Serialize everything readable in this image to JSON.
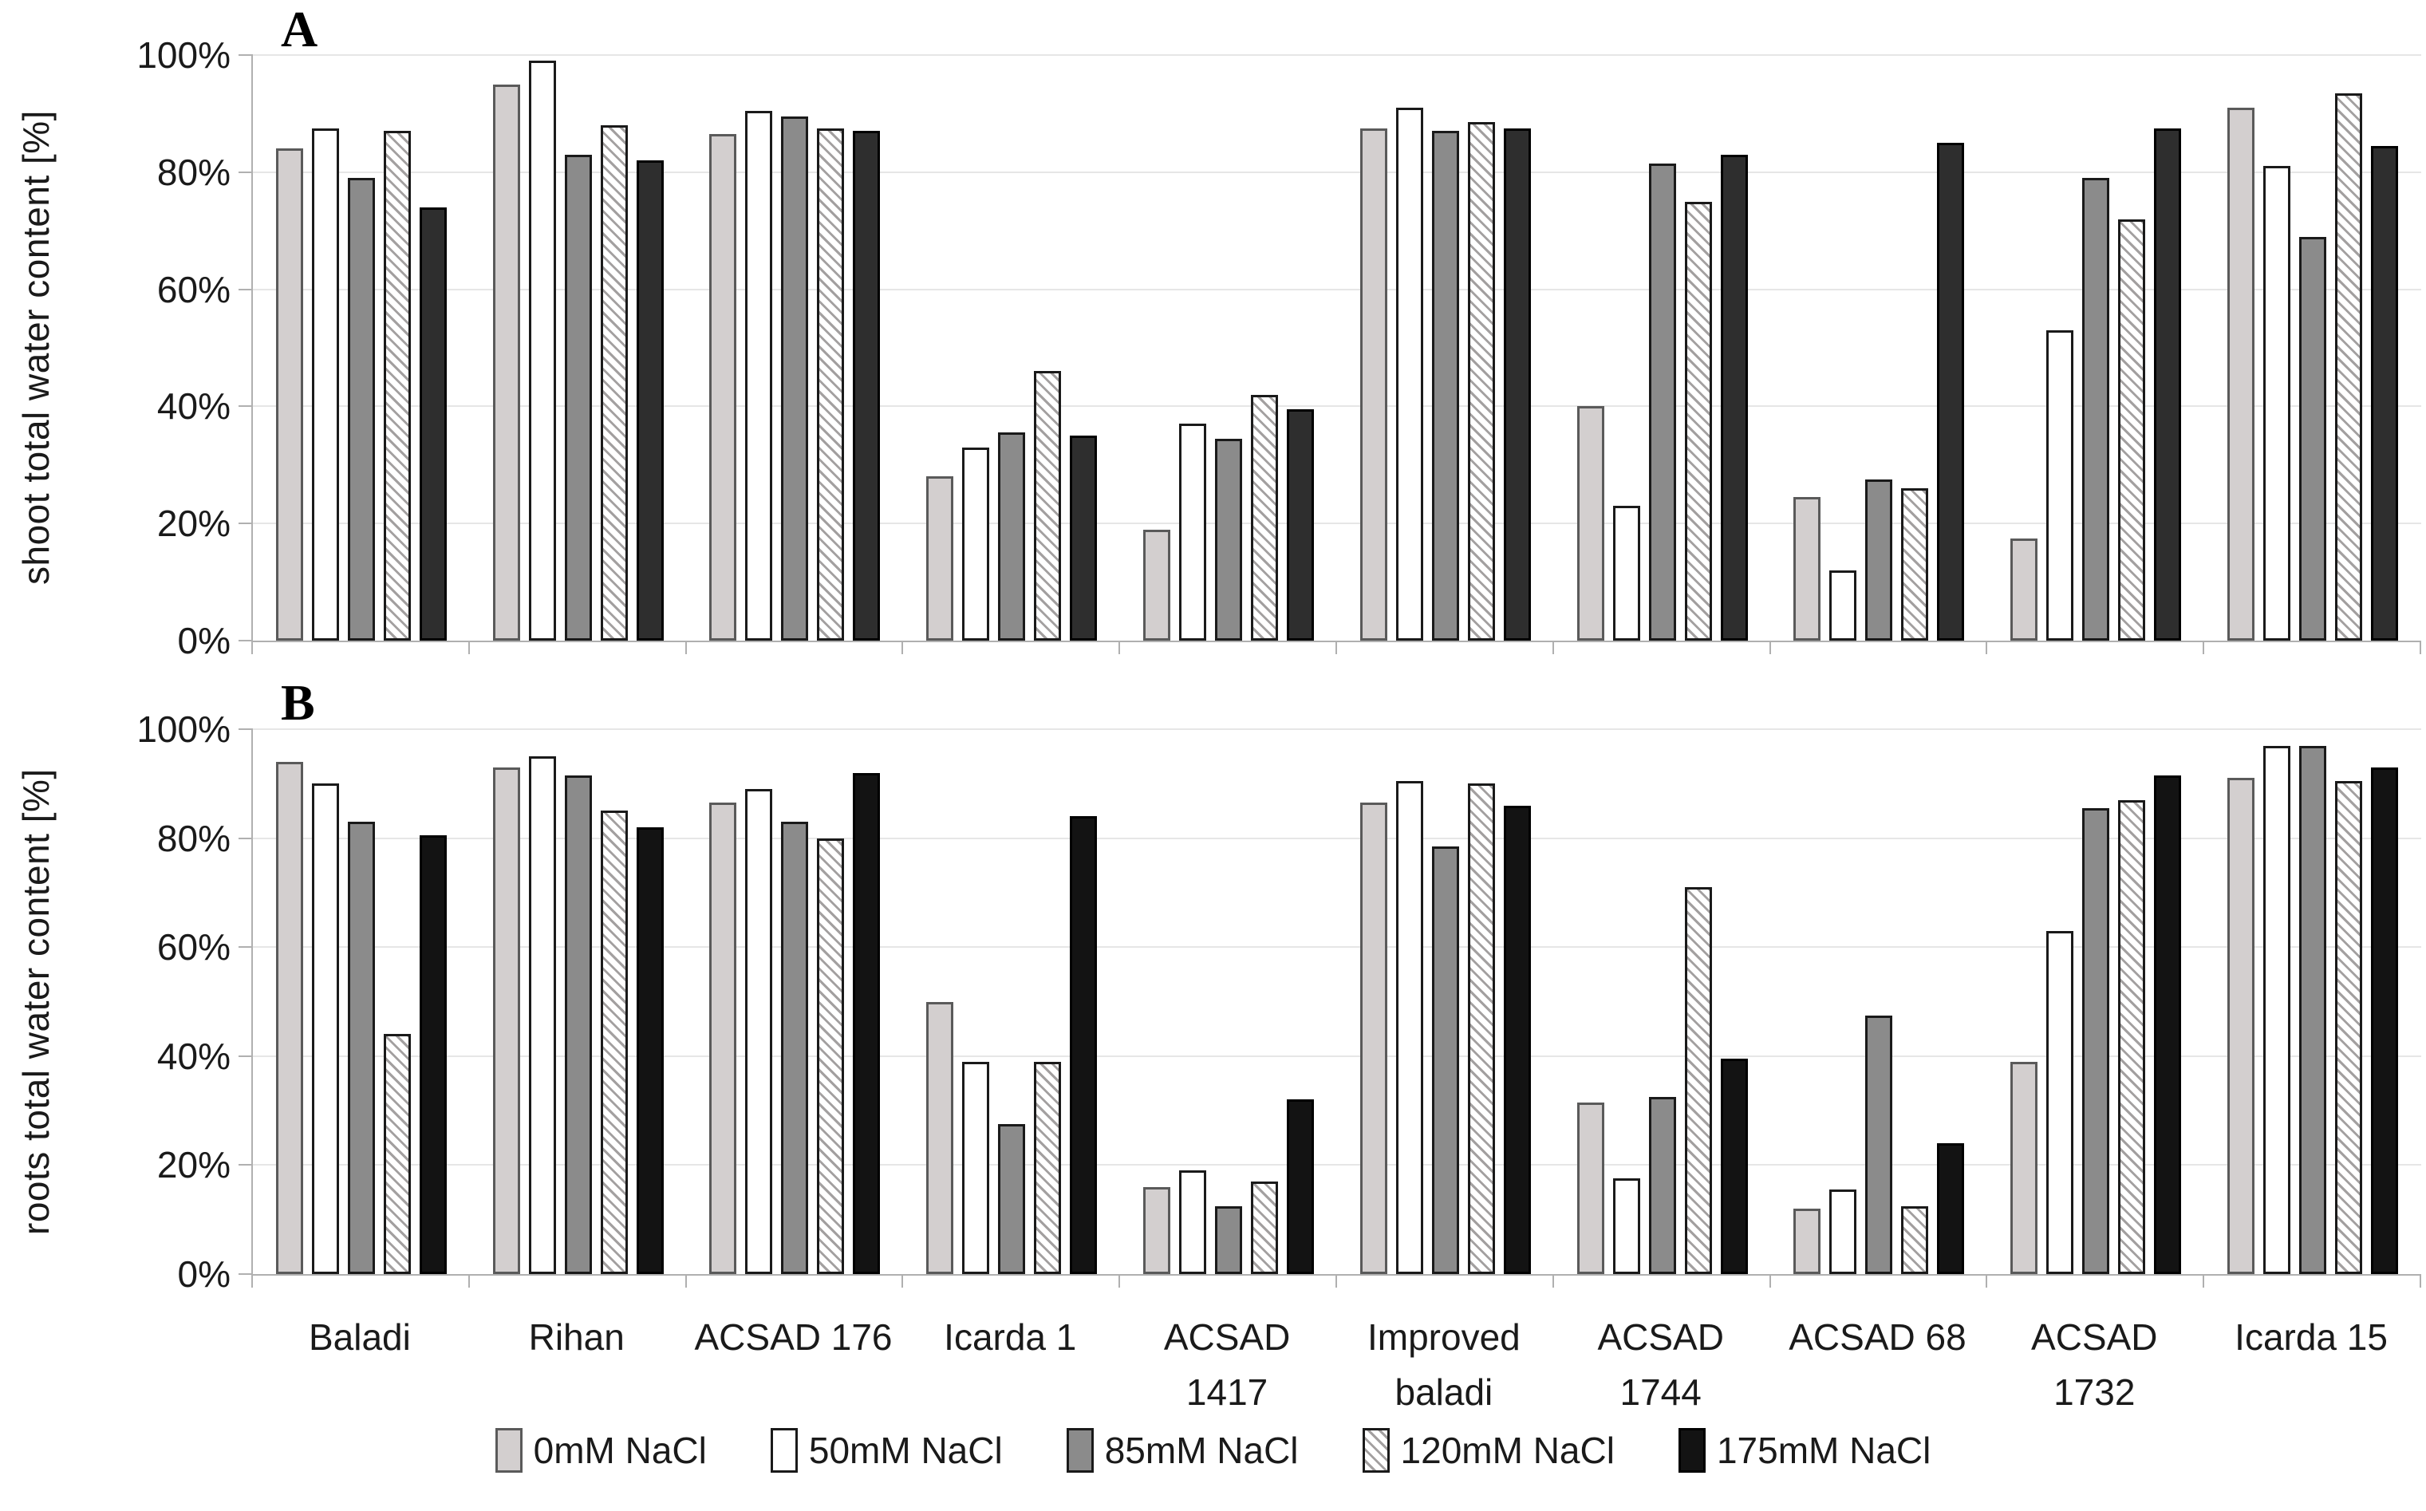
{
  "figure": {
    "panel_a_letter": "A",
    "panel_b_letter": "B"
  },
  "chart_data": [
    {
      "type": "bar",
      "panel": "A",
      "ylabel": "shoot  total water content [%]",
      "ylim": [
        0,
        100
      ],
      "grid": "horizontal",
      "yticks": [
        {
          "label": "0%",
          "value": 0
        },
        {
          "label": "20%",
          "value": 20
        },
        {
          "label": "40%",
          "value": 40
        },
        {
          "label": "60%",
          "value": 60
        },
        {
          "label": "80%",
          "value": 80
        },
        {
          "label": "100%",
          "value": 100
        }
      ],
      "categories": [
        "Baladi",
        "Rihan",
        "ACSAD 176",
        "Icarda 1",
        "ACSAD 1417",
        "Improved baladi",
        "ACSAD 1744",
        "ACSAD 68",
        "ACSAD 1732",
        "Icarda 15"
      ],
      "series": [
        {
          "name": "0mM NaCl",
          "values": [
            84,
            95,
            86.5,
            28,
            19,
            87.5,
            40,
            24.5,
            17.5,
            91
          ]
        },
        {
          "name": "50mM NaCl",
          "values": [
            87.5,
            99,
            90.5,
            33,
            37,
            91,
            23,
            12,
            53,
            81
          ]
        },
        {
          "name": "85mM NaCl",
          "values": [
            79,
            83,
            89.5,
            35.5,
            34.5,
            87,
            81.5,
            27.5,
            79,
            69
          ]
        },
        {
          "name": "120mM NaCl",
          "values": [
            87,
            88,
            87.5,
            46,
            42,
            88.5,
            75,
            26,
            72,
            93.5
          ]
        },
        {
          "name": "175mM NaCl",
          "values": [
            74,
            82,
            87,
            35,
            39.5,
            87.5,
            83,
            85,
            87.5,
            84.5
          ]
        }
      ]
    },
    {
      "type": "bar",
      "panel": "B",
      "ylabel": "roots total water content [%]",
      "ylim": [
        0,
        100
      ],
      "grid": "horizontal",
      "yticks": [
        {
          "label": "0%",
          "value": 0
        },
        {
          "label": "20%",
          "value": 20
        },
        {
          "label": "40%",
          "value": 40
        },
        {
          "label": "60%",
          "value": 60
        },
        {
          "label": "80%",
          "value": 80
        },
        {
          "label": "100%",
          "value": 100
        }
      ],
      "categories": [
        "Baladi",
        "Rihan",
        "ACSAD 176",
        "Icarda 1",
        "ACSAD 1417",
        "Improved baladi",
        "ACSAD 1744",
        "ACSAD 68",
        "ACSAD 1732",
        "Icarda 15"
      ],
      "series": [
        {
          "name": "0mM NaCl",
          "values": [
            94,
            93,
            86.5,
            50,
            16,
            86.5,
            31.5,
            12,
            39,
            91
          ]
        },
        {
          "name": "50mM NaCl",
          "values": [
            90,
            95,
            89,
            39,
            19,
            90.5,
            17.5,
            15.5,
            63,
            97
          ]
        },
        {
          "name": "85mM NaCl",
          "values": [
            83,
            91.5,
            83,
            27.5,
            12.5,
            78.5,
            32.5,
            47.5,
            85.5,
            97
          ]
        },
        {
          "name": "120mM NaCl",
          "values": [
            44,
            85,
            80,
            39,
            17,
            90,
            71,
            12.5,
            87,
            90.5
          ]
        },
        {
          "name": "175mM NaCl",
          "values": [
            80.5,
            82,
            92,
            84,
            32,
            86,
            39.5,
            24,
            91.5,
            93
          ]
        }
      ]
    }
  ],
  "categories_lines": [
    [
      "Baladi"
    ],
    [
      "Rihan"
    ],
    [
      "ACSAD 176"
    ],
    [
      "Icarda 1"
    ],
    [
      "ACSAD",
      "1417"
    ],
    [
      "Improved",
      "baladi"
    ],
    [
      "ACSAD",
      "1744"
    ],
    [
      "ACSAD 68"
    ],
    [
      "ACSAD",
      "1732"
    ],
    [
      "Icarda 15"
    ]
  ],
  "legend": {
    "items": [
      {
        "label": "0mM NaCl"
      },
      {
        "label": "50mM NaCl"
      },
      {
        "label": "85mM NaCl"
      },
      {
        "label": "120mM NaCl"
      },
      {
        "label": "175mM NaCl"
      }
    ],
    "position": "bottom"
  },
  "series_styles": [
    {
      "fill": "#d3cfcf",
      "border": "#5a5a5a",
      "hatch": false
    },
    {
      "fill": "#ffffff",
      "border": "#1a1a1a",
      "hatch": false
    },
    {
      "fill": "#8b8b8b",
      "border": "#1a1a1a",
      "hatch": false
    },
    {
      "fill": "#ffffff",
      "border": "#1a1a1a",
      "hatch": true,
      "stripe": "#a3a0a0"
    },
    {
      "fill": "#2e2e2e",
      "border": "#000000",
      "hatch": false,
      "fill_b": "#131313"
    }
  ],
  "axis_colors": {
    "grid": "#e6e6e6",
    "axis": "#b0b0b0",
    "text": "#1a1a1a"
  }
}
